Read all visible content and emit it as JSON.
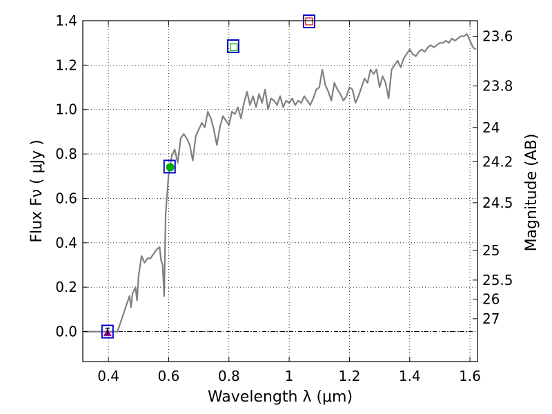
{
  "chart_data": {
    "type": "line",
    "title": "",
    "xlabel": "Wavelength  λ (μm)",
    "ylabel": "Flux  Fν ( μJy )",
    "y2label": "Magnitude (AB)",
    "xlim": [
      0.315,
      1.625
    ],
    "ylim": [
      -0.135,
      1.4
    ],
    "grid": true,
    "x_ticks": [
      0.4,
      0.6,
      0.8,
      1.0,
      1.2,
      1.4,
      1.6
    ],
    "x_tick_labels": [
      "0.4",
      "0.6",
      "0.8",
      "1",
      "1.2",
      "1.4",
      "1.6"
    ],
    "y_ticks": [
      0.0,
      0.2,
      0.4,
      0.6,
      0.8,
      1.0,
      1.2,
      1.4
    ],
    "y_tick_labels": [
      "0.0",
      "0.2",
      "0.4",
      "0.6",
      "0.8",
      "1.0",
      "1.2",
      "1.4"
    ],
    "y2_ticks": [
      {
        "label": "23.6",
        "flux": 1.33
      },
      {
        "label": "23.8",
        "flux": 1.106
      },
      {
        "label": "24",
        "flux": 0.919
      },
      {
        "label": "24.2",
        "flux": 0.765
      },
      {
        "label": "24.5",
        "flux": 0.58
      },
      {
        "label": "25",
        "flux": 0.366
      },
      {
        "label": "25.5",
        "flux": 0.232
      },
      {
        "label": "26",
        "flux": 0.146
      },
      {
        "label": "27",
        "flux": 0.058
      }
    ],
    "colors": {
      "spectrum": "#808080",
      "square": "#0000cc",
      "green_point": "#00aa00",
      "triangle": "#990099",
      "red": "#cc0000",
      "grid": "#000000"
    },
    "series": [
      {
        "kind": "line",
        "points": [
          [
            0.32,
            0.0
          ],
          [
            0.42,
            0.0
          ],
          [
            0.43,
            0.0
          ],
          [
            0.44,
            0.04
          ],
          [
            0.45,
            0.08
          ],
          [
            0.46,
            0.12
          ],
          [
            0.47,
            0.16
          ],
          [
            0.475,
            0.11
          ],
          [
            0.48,
            0.17
          ],
          [
            0.49,
            0.2
          ],
          [
            0.495,
            0.14
          ],
          [
            0.5,
            0.25
          ],
          [
            0.51,
            0.34
          ],
          [
            0.52,
            0.31
          ],
          [
            0.53,
            0.33
          ],
          [
            0.54,
            0.33
          ],
          [
            0.55,
            0.35
          ],
          [
            0.56,
            0.37
          ],
          [
            0.57,
            0.38
          ],
          [
            0.575,
            0.32
          ],
          [
            0.58,
            0.3
          ],
          [
            0.585,
            0.16
          ],
          [
            0.59,
            0.53
          ],
          [
            0.6,
            0.71
          ],
          [
            0.61,
            0.79
          ],
          [
            0.62,
            0.82
          ],
          [
            0.63,
            0.76
          ],
          [
            0.64,
            0.87
          ],
          [
            0.65,
            0.89
          ],
          [
            0.66,
            0.87
          ],
          [
            0.67,
            0.84
          ],
          [
            0.68,
            0.77
          ],
          [
            0.69,
            0.88
          ],
          [
            0.7,
            0.91
          ],
          [
            0.71,
            0.94
          ],
          [
            0.72,
            0.92
          ],
          [
            0.73,
            0.99
          ],
          [
            0.74,
            0.96
          ],
          [
            0.75,
            0.91
          ],
          [
            0.76,
            0.84
          ],
          [
            0.77,
            0.92
          ],
          [
            0.78,
            0.97
          ],
          [
            0.79,
            0.95
          ],
          [
            0.8,
            0.93
          ],
          [
            0.81,
            0.99
          ],
          [
            0.82,
            0.98
          ],
          [
            0.83,
            1.01
          ],
          [
            0.84,
            0.96
          ],
          [
            0.85,
            1.03
          ],
          [
            0.86,
            1.08
          ],
          [
            0.87,
            1.02
          ],
          [
            0.88,
            1.06
          ],
          [
            0.89,
            1.01
          ],
          [
            0.9,
            1.07
          ],
          [
            0.91,
            1.03
          ],
          [
            0.92,
            1.09
          ],
          [
            0.93,
            1.0
          ],
          [
            0.94,
            1.05
          ],
          [
            0.95,
            1.04
          ],
          [
            0.96,
            1.02
          ],
          [
            0.97,
            1.06
          ],
          [
            0.98,
            1.01
          ],
          [
            0.99,
            1.04
          ],
          [
            1.0,
            1.03
          ],
          [
            1.01,
            1.05
          ],
          [
            1.02,
            1.02
          ],
          [
            1.03,
            1.04
          ],
          [
            1.04,
            1.03
          ],
          [
            1.05,
            1.06
          ],
          [
            1.06,
            1.04
          ],
          [
            1.07,
            1.02
          ],
          [
            1.08,
            1.05
          ],
          [
            1.09,
            1.09
          ],
          [
            1.1,
            1.1
          ],
          [
            1.11,
            1.18
          ],
          [
            1.12,
            1.11
          ],
          [
            1.13,
            1.08
          ],
          [
            1.14,
            1.04
          ],
          [
            1.15,
            1.12
          ],
          [
            1.16,
            1.09
          ],
          [
            1.17,
            1.07
          ],
          [
            1.18,
            1.04
          ],
          [
            1.19,
            1.06
          ],
          [
            1.2,
            1.1
          ],
          [
            1.21,
            1.09
          ],
          [
            1.22,
            1.03
          ],
          [
            1.23,
            1.06
          ],
          [
            1.24,
            1.1
          ],
          [
            1.25,
            1.14
          ],
          [
            1.26,
            1.12
          ],
          [
            1.27,
            1.18
          ],
          [
            1.28,
            1.16
          ],
          [
            1.29,
            1.18
          ],
          [
            1.3,
            1.1
          ],
          [
            1.31,
            1.15
          ],
          [
            1.32,
            1.12
          ],
          [
            1.33,
            1.05
          ],
          [
            1.34,
            1.18
          ],
          [
            1.35,
            1.2
          ],
          [
            1.36,
            1.22
          ],
          [
            1.37,
            1.19
          ],
          [
            1.38,
            1.23
          ],
          [
            1.39,
            1.25
          ],
          [
            1.4,
            1.27
          ],
          [
            1.41,
            1.25
          ],
          [
            1.42,
            1.24
          ],
          [
            1.43,
            1.26
          ],
          [
            1.44,
            1.27
          ],
          [
            1.45,
            1.26
          ],
          [
            1.46,
            1.28
          ],
          [
            1.47,
            1.29
          ],
          [
            1.48,
            1.28
          ],
          [
            1.49,
            1.29
          ],
          [
            1.5,
            1.3
          ],
          [
            1.51,
            1.3
          ],
          [
            1.52,
            1.31
          ],
          [
            1.53,
            1.3
          ],
          [
            1.54,
            1.32
          ],
          [
            1.55,
            1.31
          ],
          [
            1.56,
            1.32
          ],
          [
            1.57,
            1.33
          ],
          [
            1.58,
            1.33
          ],
          [
            1.59,
            1.34
          ],
          [
            1.6,
            1.31
          ],
          [
            1.61,
            1.28
          ],
          [
            1.62,
            1.27
          ]
        ]
      }
    ],
    "markers": [
      {
        "shape": "square",
        "x": 0.397,
        "y": 0.0,
        "color": "#0000cc"
      },
      {
        "shape": "triangle",
        "x": 0.397,
        "y": -0.005,
        "color": "#990099"
      },
      {
        "shape": "errorbar",
        "x": 0.397,
        "y": 0.0,
        "err": 0.015,
        "color": "#000000"
      },
      {
        "shape": "square",
        "x": 0.603,
        "y": 0.743,
        "color": "#0000cc"
      },
      {
        "shape": "circle",
        "x": 0.605,
        "y": 0.74,
        "color": "#00aa00"
      },
      {
        "shape": "square",
        "x": 0.814,
        "y": 1.285,
        "color": "#0000cc"
      },
      {
        "shape": "square-open",
        "x": 0.816,
        "y": 1.28,
        "color": "#00aa00"
      },
      {
        "shape": "square",
        "x": 1.066,
        "y": 1.397,
        "color": "#0000cc"
      },
      {
        "shape": "square-open",
        "x": 1.066,
        "y": 1.397,
        "color": "#cc0000"
      }
    ],
    "hlines": [
      {
        "y": 0.0,
        "style": "dashdot",
        "color": "#000000"
      }
    ]
  }
}
